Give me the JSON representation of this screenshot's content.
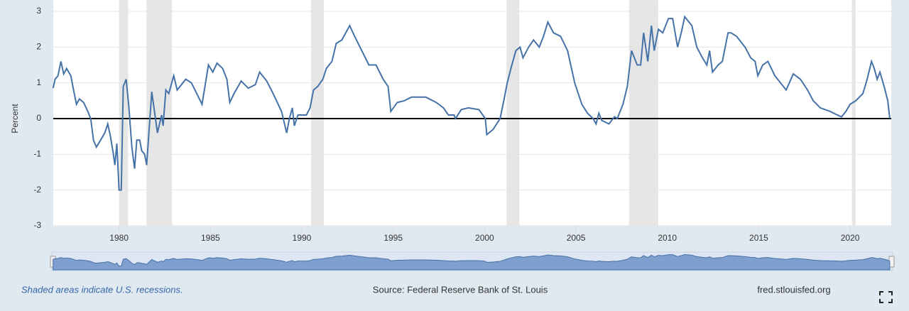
{
  "chart_data": {
    "type": "line",
    "y_label": "Percent",
    "x": [
      1976.39,
      1976.5,
      1976.66,
      1976.82,
      1976.97,
      1977.13,
      1977.36,
      1977.51,
      1977.67,
      1977.83,
      1978.06,
      1978.29,
      1978.45,
      1978.6,
      1978.76,
      1978.99,
      1979.22,
      1979.38,
      1979.53,
      1979.69,
      1979.77,
      1979.88,
      1980.0,
      1980.12,
      1980.23,
      1980.39,
      1980.54,
      1980.7,
      1980.85,
      1980.97,
      1981.13,
      1981.24,
      1981.4,
      1981.51,
      1981.79,
      1982.1,
      1982.33,
      1982.41,
      1982.56,
      1982.72,
      1982.99,
      1983.18,
      1983.65,
      1983.96,
      1984.54,
      1984.89,
      1985.13,
      1985.36,
      1985.67,
      1985.9,
      1986.06,
      1986.29,
      1986.68,
      1987.07,
      1987.46,
      1987.69,
      1988.08,
      1988.43,
      1988.89,
      1989.17,
      1989.32,
      1989.48,
      1989.59,
      1989.79,
      1990.25,
      1990.45,
      1990.64,
      1990.87,
      1991.15,
      1991.34,
      1991.65,
      1991.88,
      1992.19,
      1992.62,
      1992.89,
      1993.28,
      1993.67,
      1994.06,
      1994.45,
      1994.72,
      1994.87,
      1995.22,
      1995.61,
      1996.0,
      1996.78,
      1997.36,
      1997.75,
      1998.02,
      1998.33,
      1998.41,
      1998.72,
      1999.11,
      1999.69,
      2000.04,
      2000.12,
      2000.47,
      2000.85,
      2001.05,
      2001.24,
      2001.44,
      2001.71,
      2001.94,
      2002.1,
      2002.41,
      2002.68,
      2002.99,
      2003.22,
      2003.46,
      2003.77,
      2004.16,
      2004.54,
      2004.93,
      2005.32,
      2005.63,
      2005.94,
      2006.1,
      2006.25,
      2006.41,
      2006.8,
      2007.11,
      2007.26,
      2007.57,
      2007.81,
      2008.04,
      2008.35,
      2008.54,
      2008.7,
      2008.93,
      2009.13,
      2009.28,
      2009.51,
      2009.75,
      2010.06,
      2010.29,
      2010.56,
      2010.76,
      2010.95,
      2011.34,
      2011.61,
      2011.92,
      2012.16,
      2012.31,
      2012.47,
      2012.78,
      2013.01,
      2013.32,
      2013.48,
      2013.79,
      2014.25,
      2014.56,
      2014.8,
      2014.95,
      2015.22,
      2015.5,
      2015.88,
      2016.19,
      2016.5,
      2016.89,
      2017.28,
      2017.67,
      2017.98,
      2018.37,
      2018.91,
      2019.3,
      2019.53,
      2019.77,
      2020.0,
      2020.31,
      2020.7,
      2020.93,
      2021.17,
      2021.32,
      2021.48,
      2021.63,
      2021.86,
      2022.06,
      2022.17
    ],
    "series": [
      {
        "color": "#4572a7",
        "values": [
          0.85,
          1.1,
          1.2,
          1.6,
          1.25,
          1.4,
          1.2,
          0.8,
          0.4,
          0.55,
          0.45,
          0.2,
          0.0,
          -0.6,
          -0.8,
          -0.6,
          -0.4,
          -0.15,
          -0.5,
          -1.0,
          -1.3,
          -0.7,
          -2.0,
          -2.0,
          0.9,
          1.1,
          0.3,
          -0.8,
          -1.4,
          -0.6,
          -0.6,
          -0.9,
          -1.0,
          -1.3,
          0.75,
          -0.4,
          0.1,
          -0.2,
          0.8,
          0.7,
          1.2,
          0.8,
          1.1,
          1.0,
          0.4,
          1.5,
          1.3,
          1.55,
          1.4,
          1.1,
          0.45,
          0.7,
          1.05,
          0.85,
          0.95,
          1.3,
          1.05,
          0.7,
          0.2,
          -0.4,
          0.0,
          0.3,
          -0.2,
          0.1,
          0.1,
          0.3,
          0.8,
          0.9,
          1.1,
          1.4,
          1.6,
          2.1,
          2.2,
          2.6,
          2.3,
          1.9,
          1.5,
          1.5,
          1.1,
          0.9,
          0.2,
          0.45,
          0.5,
          0.6,
          0.6,
          0.45,
          0.3,
          0.1,
          0.1,
          0.0,
          0.25,
          0.3,
          0.25,
          0.0,
          -0.45,
          -0.3,
          0.0,
          0.5,
          1.0,
          1.4,
          1.9,
          2.0,
          1.7,
          2.0,
          2.2,
          2.0,
          2.3,
          2.7,
          2.4,
          2.3,
          1.9,
          1.0,
          0.4,
          0.15,
          0.0,
          -0.15,
          0.15,
          -0.05,
          -0.15,
          0.05,
          0.0,
          0.4,
          0.9,
          1.9,
          1.5,
          1.5,
          2.4,
          1.6,
          2.6,
          1.9,
          2.5,
          2.4,
          2.8,
          2.8,
          2.0,
          2.4,
          2.85,
          2.6,
          2.0,
          1.7,
          1.5,
          1.9,
          1.3,
          1.5,
          1.6,
          2.4,
          2.4,
          2.3,
          2.0,
          1.7,
          1.6,
          1.2,
          1.5,
          1.6,
          1.2,
          1.0,
          0.8,
          1.25,
          1.1,
          0.8,
          0.5,
          0.3,
          0.2,
          0.1,
          0.05,
          0.2,
          0.4,
          0.5,
          0.7,
          1.1,
          1.6,
          1.4,
          1.1,
          1.3,
          0.9,
          0.5,
          0.0
        ]
      }
    ],
    "recessions": [
      [
        1980.0,
        1980.5
      ],
      [
        1981.5,
        1982.9
      ],
      [
        1990.5,
        1991.2
      ],
      [
        2001.2,
        2001.9
      ],
      [
        2007.9,
        2009.5
      ],
      [
        2020.1,
        2020.3
      ]
    ],
    "xlim": [
      1976.4,
      2022.25
    ],
    "xticks": [
      1980,
      1985,
      1990,
      1995,
      2000,
      2005,
      2010,
      2015,
      2020
    ],
    "ylim": [
      -3,
      3
    ],
    "yticks": [
      -3,
      -2,
      -1,
      0,
      1,
      2,
      3
    ],
    "grid": true,
    "recession_note": "Shaded areas indicate U.S. recessions.",
    "source": "Source: Federal Reserve Bank of St. Louis",
    "site": "fred.stlouisfed.org"
  }
}
